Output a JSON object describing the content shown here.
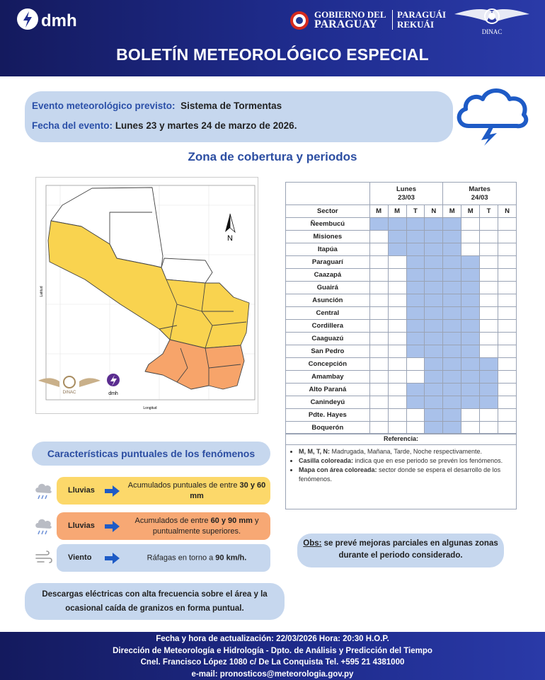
{
  "header": {
    "logo_left": "dmh",
    "gov_line1": "GOBIERNO DEL",
    "gov_line2": "PARAGUAY",
    "gov_line3": "PARAGUÁI",
    "gov_line4": "REKUÁI",
    "logo_right": "DINAC",
    "title": "BOLETÍN METEOROLÓGICO ESPECIAL"
  },
  "event": {
    "label": "Evento meteorológico previsto:",
    "value": "Sistema de Tormentas",
    "date_label": "Fecha del evento:",
    "date_value": "Lunes 23 y martes 24 de marzo de 2026."
  },
  "coverage_title": "Zona de cobertura y periodos",
  "map": {
    "north": "N",
    "x_axis": "Longitud",
    "y_axis": "Latitud",
    "logos": [
      "DINAC",
      "dmh"
    ]
  },
  "table": {
    "sector_header": "Sector",
    "days": [
      {
        "name": "Lunes",
        "date": "23/03"
      },
      {
        "name": "Martes",
        "date": "24/03"
      }
    ],
    "periods": [
      "M",
      "M",
      "T",
      "N",
      "M",
      "M",
      "T",
      "N"
    ],
    "highlight_color": "#a9c1ea",
    "rows": [
      {
        "sector": "Ñeembucú",
        "cells": [
          true,
          true,
          true,
          true,
          true,
          false,
          false,
          false
        ]
      },
      {
        "sector": "Misiones",
        "cells": [
          false,
          true,
          true,
          true,
          true,
          false,
          false,
          false
        ]
      },
      {
        "sector": "Itapúa",
        "cells": [
          false,
          true,
          true,
          true,
          true,
          false,
          false,
          false
        ]
      },
      {
        "sector": "Paraguarí",
        "cells": [
          false,
          false,
          true,
          true,
          true,
          true,
          false,
          false
        ]
      },
      {
        "sector": "Caazapá",
        "cells": [
          false,
          false,
          true,
          true,
          true,
          true,
          false,
          false
        ]
      },
      {
        "sector": "Guairá",
        "cells": [
          false,
          false,
          true,
          true,
          true,
          true,
          false,
          false
        ]
      },
      {
        "sector": "Asunción",
        "cells": [
          false,
          false,
          true,
          true,
          true,
          true,
          false,
          false
        ]
      },
      {
        "sector": "Central",
        "cells": [
          false,
          false,
          true,
          true,
          true,
          true,
          false,
          false
        ]
      },
      {
        "sector": "Cordillera",
        "cells": [
          false,
          false,
          true,
          true,
          true,
          true,
          false,
          false
        ]
      },
      {
        "sector": "Caaguazú",
        "cells": [
          false,
          false,
          true,
          true,
          true,
          true,
          false,
          false
        ]
      },
      {
        "sector": "San Pedro",
        "cells": [
          false,
          false,
          true,
          true,
          true,
          true,
          false,
          false
        ]
      },
      {
        "sector": "Concepción",
        "cells": [
          false,
          false,
          false,
          true,
          true,
          true,
          true,
          false
        ]
      },
      {
        "sector": "Amambay",
        "cells": [
          false,
          false,
          false,
          true,
          true,
          true,
          true,
          false
        ]
      },
      {
        "sector": "Alto Paraná",
        "cells": [
          false,
          false,
          true,
          true,
          true,
          true,
          true,
          false
        ]
      },
      {
        "sector": "Canindeyú",
        "cells": [
          false,
          false,
          true,
          true,
          true,
          true,
          true,
          false
        ]
      },
      {
        "sector": "Pdte. Hayes",
        "cells": [
          false,
          false,
          false,
          true,
          true,
          false,
          false,
          false
        ]
      },
      {
        "sector": "Boquerón",
        "cells": [
          false,
          false,
          false,
          true,
          true,
          false,
          false,
          false
        ]
      }
    ],
    "reference_title": "Referencia:",
    "reference": [
      {
        "term": "M, M, T, N:",
        "text": " Madrugada, Mañana, Tarde, Noche respectivamente."
      },
      {
        "term": "Casilla coloreada:",
        "text": " indica que en ese periodo se prevén los fenómenos."
      },
      {
        "term": "Mapa con área coloreada:",
        "text": " sector donde se espera el desarrollo de los fenómenos."
      }
    ]
  },
  "features": {
    "title": "Características puntuales de los fenómenos",
    "items": [
      {
        "phenomenon": "Lluvias",
        "color": "#fcd86a",
        "parts": [
          {
            "text": "Acumulados puntuales de entre ",
            "bold": false
          },
          {
            "text": "30 y 60 mm",
            "bold": true
          }
        ]
      },
      {
        "phenomenon": "Lluvias",
        "color": "#f7a874",
        "parts": [
          {
            "text": "Acumulados de entre ",
            "bold": false
          },
          {
            "text": "60 y 90 mm",
            "bold": true
          },
          {
            "text": " y puntualmente superiores.",
            "bold": false
          }
        ]
      },
      {
        "phenomenon": "Viento",
        "color": "#c6d7ee",
        "parts": [
          {
            "text": "Ráfagas en torno a ",
            "bold": false
          },
          {
            "text": "90 km/h.",
            "bold": true
          }
        ]
      }
    ]
  },
  "note": "Descargas eléctricas con alta frecuencia sobre el área y la ocasional caída de granizos en forma puntual.",
  "obs": {
    "term": "Obs:",
    "text": " se prevé mejoras parciales en algunas zonas durante el periodo considerado."
  },
  "footer": {
    "lines": [
      "Fecha y hora de actualización: 22/03/2026 Hora: 20:30 H.O.P.",
      "Dirección de Meteorología e Hidrología - Dpto. de Análisis y Predicción del Tiempo",
      "Cnel. Francisco López 1080 c/ De La Conquista Tel. +595 21 4381000",
      "e-mail: pronosticos@meteorologia.gov.py"
    ]
  }
}
